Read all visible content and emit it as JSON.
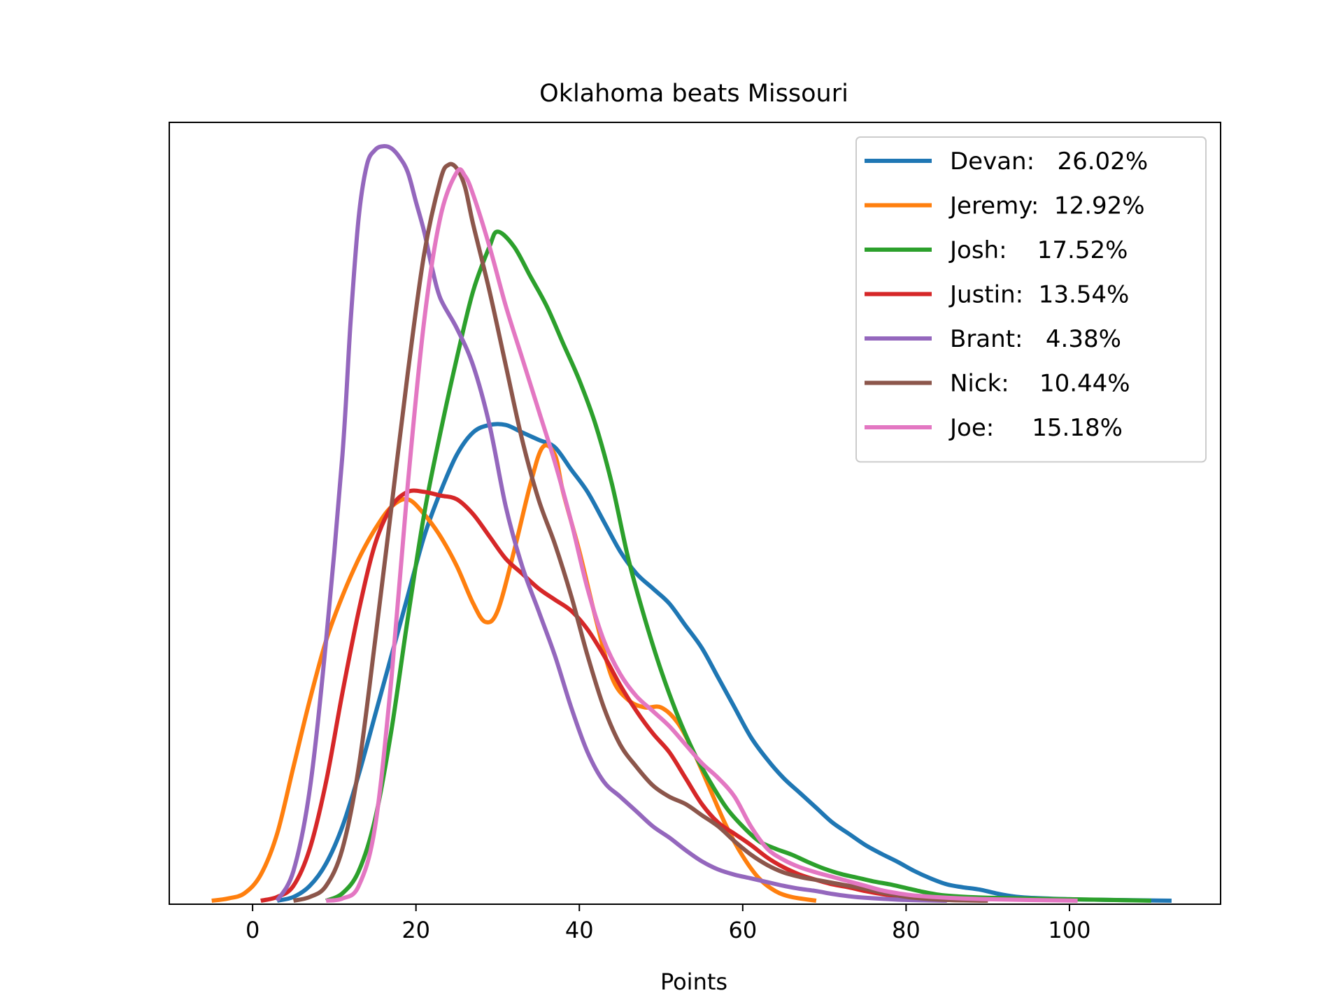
{
  "chart_data": {
    "type": "line",
    "title": "Oklahoma beats Missouri",
    "xlabel": "Points",
    "ylabel": "",
    "xlim": [
      -10.2,
      118.5
    ],
    "ylim": [
      0,
      1
    ],
    "xticks": [
      "0",
      "20",
      "40",
      "60",
      "80",
      "100"
    ],
    "xtick_values": [
      0,
      20,
      40,
      60,
      80,
      100
    ],
    "yticks_shown": false,
    "grid": false,
    "legend_position": "top-right",
    "series": [
      {
        "name": "Devan:   26.02%",
        "color": "#1f77b4",
        "points": [
          [
            3,
            0
          ],
          [
            5,
            0.005
          ],
          [
            7,
            0.02
          ],
          [
            9,
            0.05
          ],
          [
            11,
            0.1
          ],
          [
            13,
            0.17
          ],
          [
            15,
            0.25
          ],
          [
            17,
            0.33
          ],
          [
            19,
            0.41
          ],
          [
            21,
            0.49
          ],
          [
            23,
            0.55
          ],
          [
            25,
            0.6
          ],
          [
            27,
            0.63
          ],
          [
            29,
            0.64
          ],
          [
            31,
            0.64
          ],
          [
            33,
            0.63
          ],
          [
            35,
            0.62
          ],
          [
            37,
            0.61
          ],
          [
            39,
            0.58
          ],
          [
            41,
            0.55
          ],
          [
            43,
            0.51
          ],
          [
            45,
            0.47
          ],
          [
            47,
            0.44
          ],
          [
            49,
            0.42
          ],
          [
            51,
            0.4
          ],
          [
            53,
            0.37
          ],
          [
            55,
            0.34
          ],
          [
            57,
            0.3
          ],
          [
            59,
            0.26
          ],
          [
            61,
            0.22
          ],
          [
            63,
            0.19
          ],
          [
            65,
            0.165
          ],
          [
            67,
            0.145
          ],
          [
            69,
            0.125
          ],
          [
            71,
            0.105
          ],
          [
            73,
            0.09
          ],
          [
            75,
            0.075
          ],
          [
            77,
            0.063
          ],
          [
            79,
            0.052
          ],
          [
            81,
            0.04
          ],
          [
            83,
            0.03
          ],
          [
            85,
            0.022
          ],
          [
            87,
            0.018
          ],
          [
            89,
            0.015
          ],
          [
            91,
            0.01
          ],
          [
            93,
            0.006
          ],
          [
            95,
            0.004
          ],
          [
            100,
            0.002
          ],
          [
            105,
            0.001
          ],
          [
            112.5,
            0
          ]
        ]
      },
      {
        "name": "Jeremy:  12.92%",
        "color": "#ff7f0e",
        "points": [
          [
            -5,
            0
          ],
          [
            -3,
            0.003
          ],
          [
            -1,
            0.01
          ],
          [
            1,
            0.035
          ],
          [
            3,
            0.09
          ],
          [
            5,
            0.18
          ],
          [
            7,
            0.27
          ],
          [
            9,
            0.35
          ],
          [
            11,
            0.41
          ],
          [
            13,
            0.46
          ],
          [
            15,
            0.5
          ],
          [
            17,
            0.53
          ],
          [
            19,
            0.54
          ],
          [
            21,
            0.52
          ],
          [
            23,
            0.49
          ],
          [
            25,
            0.45
          ],
          [
            27,
            0.4
          ],
          [
            28.5,
            0.375
          ],
          [
            30,
            0.39
          ],
          [
            32,
            0.47
          ],
          [
            34,
            0.56
          ],
          [
            35.5,
            0.61
          ],
          [
            37,
            0.6
          ],
          [
            38,
            0.55
          ],
          [
            40,
            0.47
          ],
          [
            42,
            0.38
          ],
          [
            44,
            0.3
          ],
          [
            46,
            0.27
          ],
          [
            48,
            0.26
          ],
          [
            50,
            0.26
          ],
          [
            52,
            0.24
          ],
          [
            54,
            0.2
          ],
          [
            56,
            0.15
          ],
          [
            58,
            0.1
          ],
          [
            60,
            0.06
          ],
          [
            62,
            0.03
          ],
          [
            64,
            0.013
          ],
          [
            66,
            0.005
          ],
          [
            69,
            0
          ]
        ]
      },
      {
        "name": "Josh:    17.52%",
        "color": "#2ca02c",
        "points": [
          [
            9,
            0
          ],
          [
            11,
            0.01
          ],
          [
            13,
            0.04
          ],
          [
            15,
            0.11
          ],
          [
            17,
            0.23
          ],
          [
            19,
            0.38
          ],
          [
            21,
            0.52
          ],
          [
            23,
            0.63
          ],
          [
            25,
            0.73
          ],
          [
            27,
            0.82
          ],
          [
            29,
            0.88
          ],
          [
            30,
            0.9
          ],
          [
            32,
            0.88
          ],
          [
            34,
            0.84
          ],
          [
            36,
            0.8
          ],
          [
            38,
            0.75
          ],
          [
            40,
            0.7
          ],
          [
            42,
            0.64
          ],
          [
            44,
            0.56
          ],
          [
            46,
            0.46
          ],
          [
            48,
            0.38
          ],
          [
            50,
            0.31
          ],
          [
            52,
            0.25
          ],
          [
            54,
            0.2
          ],
          [
            56,
            0.16
          ],
          [
            58,
            0.125
          ],
          [
            60,
            0.1
          ],
          [
            62,
            0.08
          ],
          [
            64,
            0.07
          ],
          [
            66,
            0.062
          ],
          [
            68,
            0.052
          ],
          [
            70,
            0.043
          ],
          [
            72,
            0.036
          ],
          [
            74,
            0.031
          ],
          [
            76,
            0.026
          ],
          [
            78,
            0.022
          ],
          [
            80,
            0.017
          ],
          [
            82,
            0.012
          ],
          [
            84,
            0.008
          ],
          [
            86,
            0.006
          ],
          [
            90,
            0.004
          ],
          [
            100,
            0.002
          ],
          [
            110,
            0
          ]
        ]
      },
      {
        "name": "Justin:  13.54%",
        "color": "#d62728",
        "points": [
          [
            1,
            0
          ],
          [
            3,
            0.005
          ],
          [
            5,
            0.02
          ],
          [
            7,
            0.07
          ],
          [
            9,
            0.16
          ],
          [
            11,
            0.28
          ],
          [
            13,
            0.39
          ],
          [
            15,
            0.48
          ],
          [
            17,
            0.53
          ],
          [
            19,
            0.55
          ],
          [
            21,
            0.55
          ],
          [
            23,
            0.545
          ],
          [
            25,
            0.54
          ],
          [
            27,
            0.52
          ],
          [
            29,
            0.49
          ],
          [
            31,
            0.46
          ],
          [
            33,
            0.44
          ],
          [
            35,
            0.42
          ],
          [
            37,
            0.405
          ],
          [
            39,
            0.39
          ],
          [
            41,
            0.365
          ],
          [
            43,
            0.33
          ],
          [
            45,
            0.29
          ],
          [
            47,
            0.255
          ],
          [
            49,
            0.225
          ],
          [
            51,
            0.2
          ],
          [
            53,
            0.165
          ],
          [
            55,
            0.13
          ],
          [
            57,
            0.105
          ],
          [
            59,
            0.09
          ],
          [
            61,
            0.075
          ],
          [
            63,
            0.058
          ],
          [
            65,
            0.045
          ],
          [
            67,
            0.035
          ],
          [
            69,
            0.028
          ],
          [
            71,
            0.022
          ],
          [
            73,
            0.018
          ],
          [
            75,
            0.013
          ],
          [
            77,
            0.009
          ],
          [
            79,
            0.006
          ],
          [
            81,
            0.003
          ],
          [
            85,
            0.001
          ],
          [
            90,
            0
          ]
        ]
      },
      {
        "name": "Brant:   4.38%",
        "color": "#9467bd",
        "points": [
          [
            3,
            0
          ],
          [
            5,
            0.04
          ],
          [
            7,
            0.15
          ],
          [
            9,
            0.35
          ],
          [
            11,
            0.6
          ],
          [
            12,
            0.78
          ],
          [
            13,
            0.92
          ],
          [
            14,
            0.99
          ],
          [
            15,
            1.01
          ],
          [
            16,
            1.015
          ],
          [
            17,
            1.012
          ],
          [
            18,
            1.0
          ],
          [
            19,
            0.98
          ],
          [
            20,
            0.94
          ],
          [
            21,
            0.9
          ],
          [
            22,
            0.85
          ],
          [
            23,
            0.81
          ],
          [
            25,
            0.77
          ],
          [
            27,
            0.72
          ],
          [
            29,
            0.64
          ],
          [
            31,
            0.53
          ],
          [
            33,
            0.45
          ],
          [
            35,
            0.39
          ],
          [
            37,
            0.33
          ],
          [
            39,
            0.26
          ],
          [
            41,
            0.2
          ],
          [
            43,
            0.16
          ],
          [
            45,
            0.14
          ],
          [
            47,
            0.12
          ],
          [
            49,
            0.1
          ],
          [
            51,
            0.085
          ],
          [
            53,
            0.068
          ],
          [
            55,
            0.053
          ],
          [
            57,
            0.042
          ],
          [
            59,
            0.035
          ],
          [
            61,
            0.03
          ],
          [
            63,
            0.025
          ],
          [
            65,
            0.02
          ],
          [
            67,
            0.016
          ],
          [
            69,
            0.013
          ],
          [
            71,
            0.009
          ],
          [
            73,
            0.006
          ],
          [
            75,
            0.004
          ],
          [
            80,
            0.001
          ],
          [
            85,
            0
          ]
        ]
      },
      {
        "name": "Nick:    10.44%",
        "color": "#8c564b",
        "points": [
          [
            5,
            0
          ],
          [
            7,
            0.005
          ],
          [
            9,
            0.02
          ],
          [
            11,
            0.07
          ],
          [
            13,
            0.18
          ],
          [
            15,
            0.35
          ],
          [
            17,
            0.53
          ],
          [
            19,
            0.71
          ],
          [
            21,
            0.87
          ],
          [
            23,
            0.97
          ],
          [
            24,
            0.99
          ],
          [
            25,
            0.985
          ],
          [
            26,
            0.96
          ],
          [
            27,
            0.91
          ],
          [
            29,
            0.82
          ],
          [
            31,
            0.72
          ],
          [
            33,
            0.62
          ],
          [
            35,
            0.54
          ],
          [
            37,
            0.48
          ],
          [
            39,
            0.41
          ],
          [
            41,
            0.33
          ],
          [
            43,
            0.26
          ],
          [
            45,
            0.21
          ],
          [
            47,
            0.18
          ],
          [
            49,
            0.155
          ],
          [
            51,
            0.14
          ],
          [
            53,
            0.13
          ],
          [
            55,
            0.115
          ],
          [
            57,
            0.1
          ],
          [
            59,
            0.08
          ],
          [
            61,
            0.062
          ],
          [
            63,
            0.048
          ],
          [
            65,
            0.038
          ],
          [
            67,
            0.032
          ],
          [
            69,
            0.028
          ],
          [
            71,
            0.024
          ],
          [
            73,
            0.02
          ],
          [
            75,
            0.016
          ],
          [
            77,
            0.011
          ],
          [
            79,
            0.007
          ],
          [
            81,
            0.004
          ],
          [
            85,
            0.001
          ],
          [
            90,
            0
          ]
        ]
      },
      {
        "name": "Joe:     15.18%",
        "color": "#e377c2",
        "points": [
          [
            9,
            0
          ],
          [
            11,
            0.003
          ],
          [
            13,
            0.02
          ],
          [
            15,
            0.1
          ],
          [
            17,
            0.3
          ],
          [
            19,
            0.56
          ],
          [
            21,
            0.78
          ],
          [
            23,
            0.92
          ],
          [
            25,
            0.98
          ],
          [
            26,
            0.975
          ],
          [
            27,
            0.95
          ],
          [
            29,
            0.88
          ],
          [
            31,
            0.8
          ],
          [
            33,
            0.73
          ],
          [
            35,
            0.66
          ],
          [
            37,
            0.59
          ],
          [
            39,
            0.51
          ],
          [
            41,
            0.42
          ],
          [
            43,
            0.35
          ],
          [
            45,
            0.305
          ],
          [
            47,
            0.275
          ],
          [
            49,
            0.255
          ],
          [
            51,
            0.235
          ],
          [
            53,
            0.21
          ],
          [
            55,
            0.185
          ],
          [
            57,
            0.165
          ],
          [
            59,
            0.14
          ],
          [
            61,
            0.1
          ],
          [
            63,
            0.07
          ],
          [
            65,
            0.055
          ],
          [
            67,
            0.045
          ],
          [
            69,
            0.038
          ],
          [
            71,
            0.032
          ],
          [
            73,
            0.026
          ],
          [
            75,
            0.02
          ],
          [
            77,
            0.014
          ],
          [
            79,
            0.01
          ],
          [
            81,
            0.007
          ],
          [
            85,
            0.004
          ],
          [
            90,
            0.002
          ],
          [
            101,
            0
          ]
        ]
      }
    ]
  }
}
